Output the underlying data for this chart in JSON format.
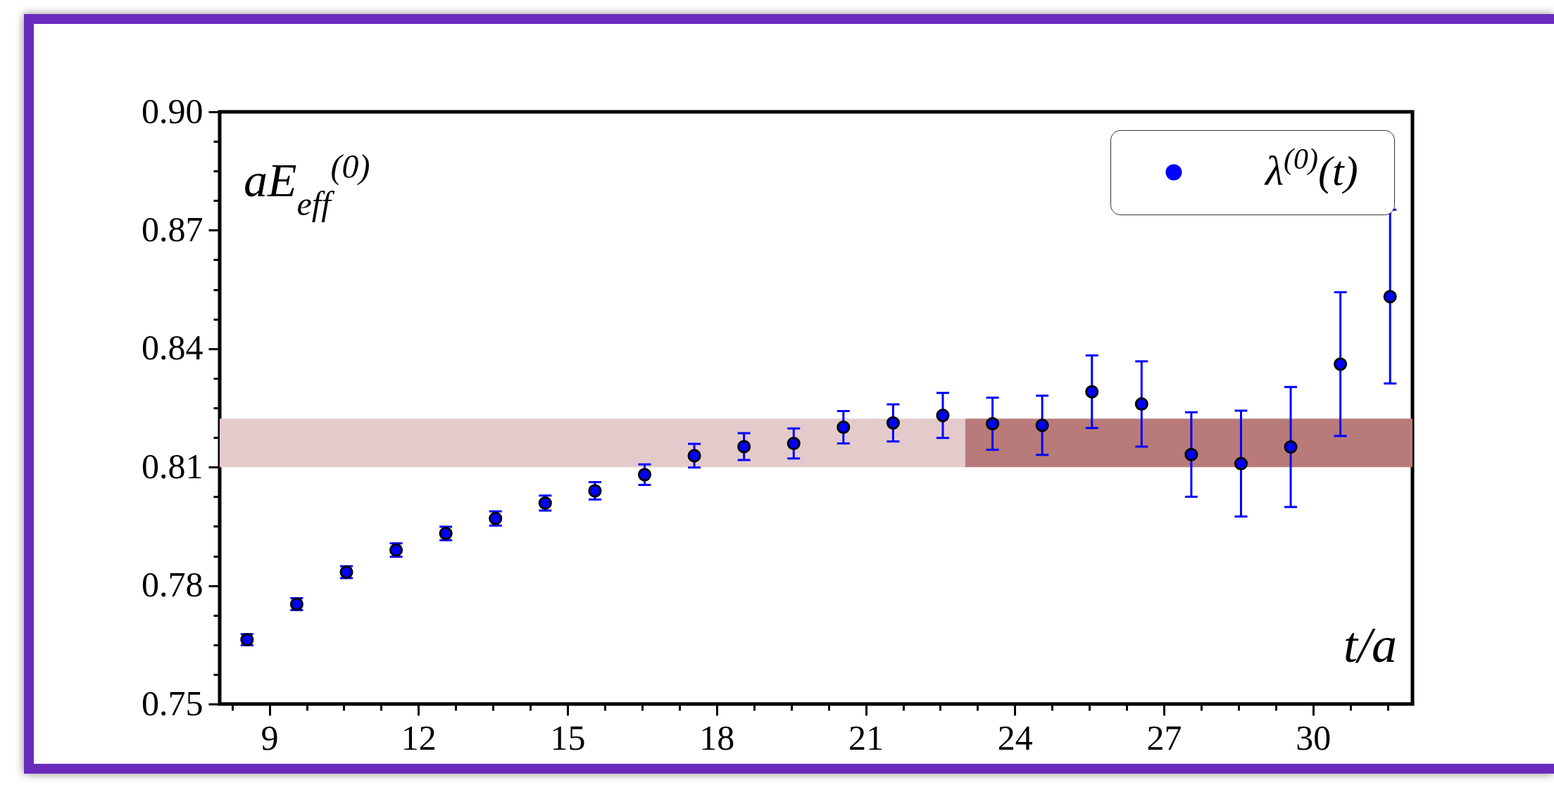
{
  "chart_data": {
    "type": "scatter",
    "xlabel": "t/a",
    "ylabel": "aE$_{eff}$$^{(0)}$",
    "x": [
      8.55,
      9.55,
      10.55,
      11.55,
      12.55,
      13.55,
      14.55,
      15.55,
      16.55,
      17.55,
      18.55,
      19.55,
      20.55,
      21.55,
      22.55,
      23.55,
      24.55,
      25.55,
      26.55,
      27.55,
      28.55,
      29.55,
      30.55,
      31.55
    ],
    "series": [
      {
        "type": "line",
        "x": [
          8,
          23
        ],
        "values": [
          null,
          null
        ],
        "lower": [
          0.81,
          0.81
        ],
        "upper": [
          0.8223,
          0.8223
        ],
        "color": "#e3cbcb"
      },
      {
        "type": "line",
        "x": [
          23,
          32
        ],
        "values": [
          null,
          null
        ],
        "lower": [
          0.81,
          0.81
        ],
        "upper": [
          0.8223,
          0.8223
        ],
        "color": "#b97a7a"
      },
      {
        "name": "λ$^{(0)}$(t)",
        "color": "#0000ff",
        "values": [
          0.7663,
          0.7753,
          0.7834,
          0.789,
          0.7932,
          0.797,
          0.8009,
          0.804,
          0.8081,
          0.8129,
          0.8152,
          0.816,
          0.8201,
          0.8212,
          0.8231,
          0.821,
          0.8206,
          0.8291,
          0.826,
          0.8132,
          0.8109,
          0.8151,
          0.8361,
          0.8532
        ],
        "errors": [
          0.0014,
          0.0015,
          0.0015,
          0.0017,
          0.0017,
          0.0018,
          0.0019,
          0.0022,
          0.0026,
          0.003,
          0.0034,
          0.0038,
          0.0041,
          0.0047,
          0.0057,
          0.0066,
          0.0075,
          0.0092,
          0.0108,
          0.0107,
          0.0134,
          0.0152,
          0.0182,
          0.022
        ]
      }
    ],
    "xlim": [
      8,
      32
    ],
    "xticks": [
      {
        "value": 8.25,
        "label": null
      },
      9,
      {
        "value": 9.75,
        "label": null
      },
      {
        "value": 10.5,
        "label": null
      },
      {
        "value": 11.25,
        "label": null
      },
      12,
      {
        "value": 12.75,
        "label": null
      },
      {
        "value": 13.5,
        "label": null
      },
      {
        "value": 14.25,
        "label": null
      },
      15,
      {
        "value": 15.75,
        "label": null
      },
      {
        "value": 16.5,
        "label": null
      },
      {
        "value": 17.25,
        "label": null
      },
      18,
      {
        "value": 18.75,
        "label": null
      },
      {
        "value": 19.5,
        "label": null
      },
      {
        "value": 20.25,
        "label": null
      },
      21,
      {
        "value": 21.75,
        "label": null
      },
      {
        "value": 22.5,
        "label": null
      },
      {
        "value": 23.25,
        "label": null
      },
      24,
      {
        "value": 24.75,
        "label": null
      },
      {
        "value": 25.5,
        "label": null
      },
      {
        "value": 26.25,
        "label": null
      },
      27,
      {
        "value": 27.75,
        "label": null
      },
      {
        "value": 28.5,
        "label": null
      },
      {
        "value": 29.25,
        "label": null
      },
      30,
      {
        "value": 30.75,
        "label": null
      },
      {
        "value": 31.5,
        "label": null
      }
    ],
    "ylim": [
      0.75,
      0.9
    ],
    "yticks": [
      0.75,
      {
        "value": 0.7575,
        "label": null
      },
      {
        "value": 0.765,
        "label": null
      },
      {
        "value": 0.7725,
        "label": null
      },
      0.78,
      {
        "value": 0.7875,
        "label": null
      },
      {
        "value": 0.795,
        "label": null
      },
      {
        "value": 0.8025,
        "label": null
      },
      0.81,
      {
        "value": 0.8175,
        "label": null
      },
      {
        "value": 0.825,
        "label": null
      },
      {
        "value": 0.8325,
        "label": null
      },
      0.84,
      {
        "value": 0.8475,
        "label": null
      },
      {
        "value": 0.855,
        "label": null
      },
      {
        "value": 0.8625,
        "label": null
      },
      0.87,
      {
        "value": 0.8775,
        "label": null
      },
      {
        "value": 0.885,
        "label": null
      },
      {
        "value": 0.8925,
        "label": null
      },
      {
        "value": 0.9,
        "label": "0.90"
      }
    ],
    "legend": "top right",
    "marker": "circle",
    "grid": false
  }
}
